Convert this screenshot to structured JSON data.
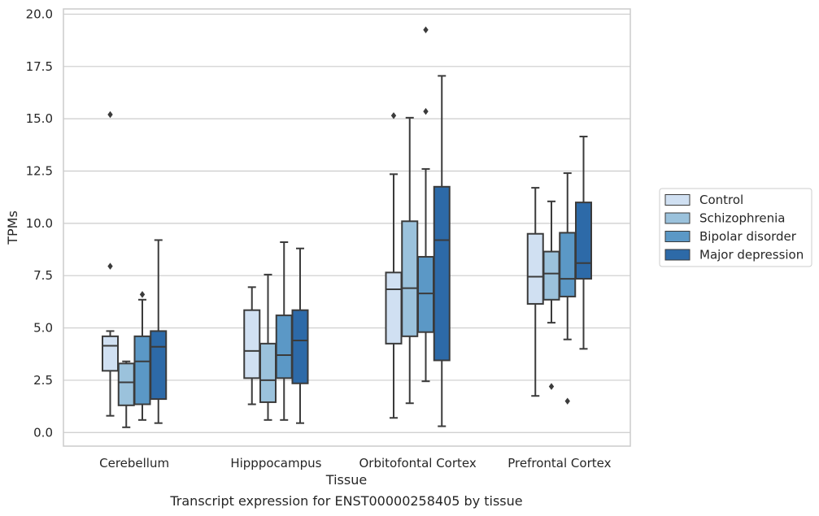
{
  "chart_data": {
    "type": "box",
    "caption": "Transcript expression for ENST00000258405 by tissue",
    "xlabel": "Tissue",
    "ylabel": "TPMs",
    "ylim": [
      -0.65,
      20.25
    ],
    "yticks": [
      "0.0",
      "2.5",
      "5.0",
      "7.5",
      "10.0",
      "12.5",
      "15.0",
      "17.5",
      "20.0"
    ],
    "grid": "horizontal",
    "legend_position": "right",
    "categories": [
      "Cerebellum",
      "Hipppocampus",
      "Orbitofontal Cortex",
      "Prefrontal Cortex"
    ],
    "series": [
      {
        "name": "Control",
        "color": "#d0e0f2",
        "boxes": [
          {
            "whislo": 0.8,
            "q1": 2.95,
            "med": 4.15,
            "q3": 4.6,
            "whishi": 4.85,
            "fliers": [
              15.2,
              7.95
            ]
          },
          {
            "whislo": 1.35,
            "q1": 2.6,
            "med": 3.9,
            "q3": 5.85,
            "whishi": 6.95,
            "fliers": []
          },
          {
            "whislo": 0.7,
            "q1": 4.25,
            "med": 6.85,
            "q3": 7.65,
            "whishi": 12.35,
            "fliers": [
              15.15
            ]
          },
          {
            "whislo": 1.75,
            "q1": 6.15,
            "med": 7.45,
            "q3": 9.5,
            "whishi": 11.7,
            "fliers": []
          }
        ]
      },
      {
        "name": "Schizophrenia",
        "color": "#9bc2dc",
        "boxes": [
          {
            "whislo": 0.25,
            "q1": 1.3,
            "med": 2.4,
            "q3": 3.3,
            "whishi": 3.4,
            "fliers": []
          },
          {
            "whislo": 0.6,
            "q1": 1.45,
            "med": 2.5,
            "q3": 4.25,
            "whishi": 7.55,
            "fliers": []
          },
          {
            "whislo": 1.4,
            "q1": 4.6,
            "med": 6.9,
            "q3": 10.1,
            "whishi": 15.05,
            "fliers": []
          },
          {
            "whislo": 5.25,
            "q1": 6.35,
            "med": 7.6,
            "q3": 8.65,
            "whishi": 11.05,
            "fliers": [
              2.2
            ]
          }
        ]
      },
      {
        "name": "Bipolar disorder",
        "color": "#5b98c6",
        "boxes": [
          {
            "whislo": 0.6,
            "q1": 1.35,
            "med": 3.4,
            "q3": 4.6,
            "whishi": 6.35,
            "fliers": [
              6.6
            ]
          },
          {
            "whislo": 0.6,
            "q1": 2.6,
            "med": 3.7,
            "q3": 5.6,
            "whishi": 9.1,
            "fliers": []
          },
          {
            "whislo": 2.45,
            "q1": 4.8,
            "med": 6.65,
            "q3": 8.4,
            "whishi": 12.6,
            "fliers": [
              19.25,
              15.35
            ]
          },
          {
            "whislo": 4.45,
            "q1": 6.5,
            "med": 7.35,
            "q3": 9.55,
            "whishi": 12.4,
            "fliers": [
              1.5
            ]
          }
        ]
      },
      {
        "name": "Major depression",
        "color": "#2d6aa8",
        "boxes": [
          {
            "whislo": 0.45,
            "q1": 1.6,
            "med": 4.1,
            "q3": 4.85,
            "whishi": 9.2,
            "fliers": []
          },
          {
            "whislo": 0.45,
            "q1": 2.35,
            "med": 4.4,
            "q3": 5.85,
            "whishi": 8.8,
            "fliers": []
          },
          {
            "whislo": 0.3,
            "q1": 3.45,
            "med": 9.2,
            "q3": 11.75,
            "whishi": 17.05,
            "fliers": []
          },
          {
            "whislo": 4.0,
            "q1": 7.35,
            "med": 8.1,
            "q3": 11.0,
            "whishi": 14.15,
            "fliers": []
          }
        ]
      }
    ]
  }
}
